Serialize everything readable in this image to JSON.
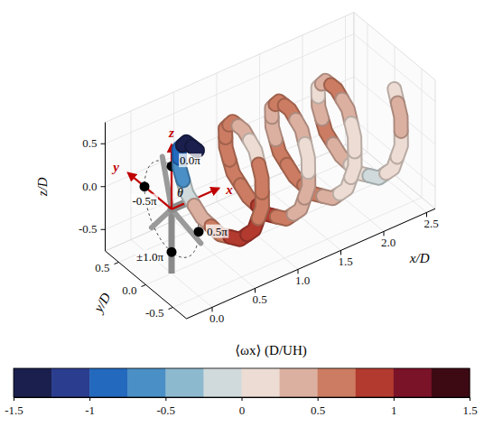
{
  "chart_data": {
    "type": "isosurface3d",
    "xlabel": "x/D",
    "ylabel": "y/D",
    "zlabel": "z/D",
    "xlim": [
      -0.3,
      2.6
    ],
    "ylim": [
      -0.75,
      0.75
    ],
    "zlim": [
      -0.75,
      0.75
    ],
    "xticks": [
      {
        "value": 0,
        "label": "0.0"
      },
      0.5,
      {
        "value": 1,
        "label": "1.0"
      },
      1.5,
      {
        "value": 2,
        "label": "2.0"
      },
      2.5
    ],
    "yticks": [
      -0.5,
      {
        "value": 0,
        "label": "0.0"
      },
      0.5
    ],
    "zticks": [
      -0.5,
      {
        "value": 0,
        "label": "0.0"
      },
      0.5
    ],
    "grid": true,
    "vortex": {
      "x": [
        0.3,
        0.35,
        0.39,
        0.44,
        0.48,
        0.53,
        0.57,
        0.62,
        0.66,
        0.71,
        0.75,
        0.8,
        0.84,
        0.89,
        0.93,
        0.98,
        1.02,
        1.07,
        1.11,
        1.16,
        1.2,
        1.25,
        1.29,
        1.34,
        1.38,
        1.43,
        1.47,
        1.52,
        1.56,
        1.61,
        1.65,
        1.7,
        1.74,
        1.79,
        1.83,
        1.88,
        1.92,
        1.97,
        2.01,
        2.06,
        2.1,
        2.15,
        2.19,
        2.24,
        2.28,
        2.33,
        2.37,
        2.42
      ],
      "y": [
        0,
        0.28,
        0.48,
        0.55,
        0.48,
        0.28,
        0,
        -0.28,
        -0.48,
        -0.55,
        -0.48,
        -0.28,
        0,
        0.28,
        0.48,
        0.55,
        0.48,
        0.28,
        0,
        -0.28,
        -0.48,
        -0.55,
        -0.48,
        -0.28,
        0,
        0.28,
        0.48,
        0.55,
        0.48,
        0.28,
        0,
        -0.28,
        -0.48,
        -0.55,
        -0.48,
        -0.28,
        0,
        0.28,
        0.48,
        0.55,
        0.48,
        0.28,
        0,
        -0.28,
        -0.48,
        -0.55,
        -0.48,
        -0.28
      ],
      "z": [
        0.55,
        0.48,
        0.28,
        0,
        -0.28,
        -0.48,
        -0.55,
        -0.48,
        -0.28,
        0,
        0.28,
        0.48,
        0.55,
        0.48,
        0.28,
        0,
        -0.28,
        -0.48,
        -0.55,
        -0.48,
        -0.28,
        0,
        0.28,
        0.48,
        0.55,
        0.48,
        0.28,
        0,
        -0.28,
        -0.48,
        -0.55,
        -0.48,
        -0.28,
        0,
        0.28,
        0.48,
        0.55,
        0.48,
        0.28,
        0,
        -0.28,
        -0.48,
        -0.55,
        -0.48,
        -0.28,
        0,
        0.28,
        0.48
      ],
      "omega": [
        -1.4,
        -1.3,
        -1.0,
        -0.6,
        -0.2,
        0.3,
        0.6,
        0.8,
        0.9,
        0.7,
        0.5,
        0.2,
        0.4,
        0.6,
        0.7,
        0.6,
        0.5,
        0.7,
        0.8,
        0.6,
        0.4,
        0.3,
        0.2,
        0.3,
        0.5,
        0.6,
        0.4,
        0.3,
        0.5,
        0.7,
        0.6,
        0.4,
        0.2,
        0.1,
        0.2,
        0.4,
        0.5,
        0.3,
        0.2,
        0.4,
        0.5,
        0.3,
        0.1,
        -0.1,
        0.0,
        0.2,
        0.3,
        0.1
      ]
    },
    "colorbar": {
      "label": "⟨ωx⟩ (D/UH)",
      "range": [
        -1.5,
        1.5
      ],
      "ticks": [
        -1.5,
        -1,
        -0.5,
        0,
        0.5,
        1,
        1.5
      ],
      "colors": [
        "#1a1f4d",
        "#2b3d8f",
        "#2369bd",
        "#4a8fc5",
        "#8db9cf",
        "#d0dadc",
        "#ecdcd3",
        "#dcb0a0",
        "#cc7c62",
        "#b23a2f",
        "#7a1228",
        "#3d0a14"
      ]
    },
    "rotor": {
      "radius": 0.5,
      "axis_labels": [
        "x",
        "y",
        "z"
      ],
      "angle_label": "θ",
      "angles": [
        {
          "value": 0,
          "label": "0.0π"
        },
        {
          "value": -0.5,
          "label": "-0.5π"
        },
        {
          "value": 0.5,
          "label": "0.5π"
        },
        {
          "value": 1,
          "label": "±1.0π"
        }
      ]
    }
  }
}
